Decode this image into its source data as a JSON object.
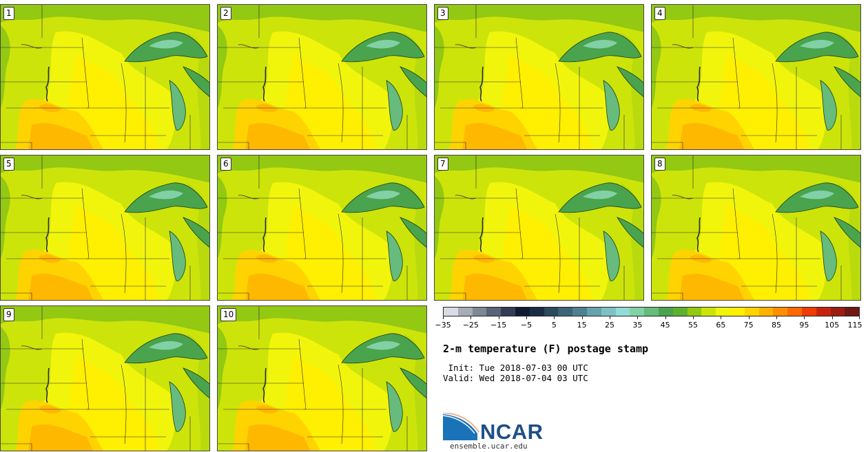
{
  "figure": {
    "title": "2-m temperature (F) postage stamp",
    "init": " Init: Tue 2018-07-03 00 UTC",
    "valid": "Valid: Wed 2018-07-04 03 UTC",
    "site": "ensemble.ucar.edu",
    "logo": "NCAR"
  },
  "panels": [
    {
      "label": "1"
    },
    {
      "label": "2"
    },
    {
      "label": "3"
    },
    {
      "label": "4"
    },
    {
      "label": "5"
    },
    {
      "label": "6"
    },
    {
      "label": "7"
    },
    {
      "label": "8"
    },
    {
      "label": "9"
    },
    {
      "label": "10"
    }
  ],
  "colorbar": {
    "ticks": [
      "−35",
      "−25",
      "−15",
      "−5",
      "5",
      "15",
      "25",
      "35",
      "45",
      "55",
      "65",
      "75",
      "85",
      "95",
      "105",
      "115"
    ],
    "colors": [
      "#d8dde3",
      "#a8adb5",
      "#7e8794",
      "#5a6478",
      "#333d55",
      "#101a33",
      "#1b2c45",
      "#2c4a5c",
      "#3d6577",
      "#4f8090",
      "#67a2ad",
      "#7fc0c4",
      "#92dcd7",
      "#82d0a6",
      "#66bb7d",
      "#4aa34d",
      "#5fb030",
      "#93c813",
      "#cde40a",
      "#f1f50c",
      "#ffef00",
      "#ffd300",
      "#ffb300",
      "#ff8f00",
      "#ff6a00",
      "#ee3b07",
      "#c52310",
      "#9c1d12",
      "#6e1812"
    ]
  }
}
